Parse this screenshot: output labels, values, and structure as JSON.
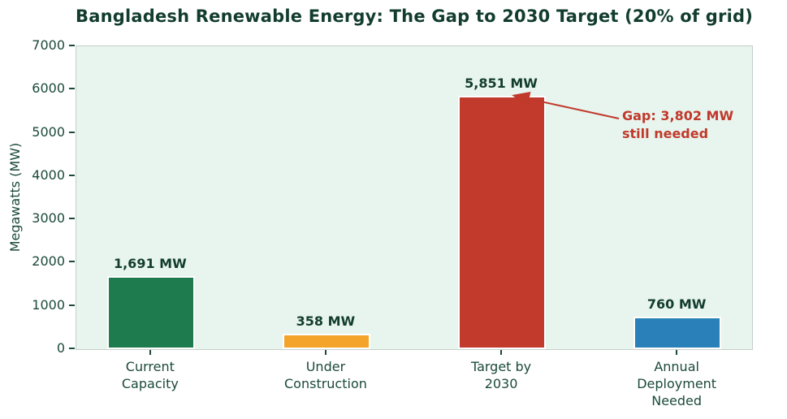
{
  "chart": {
    "title": "Bangladesh Renewable Energy: The Gap to 2030 Target (20% of grid)",
    "ylabel": "Megawatts (MW)"
  },
  "annotation": {
    "text": "Gap: 3,802 MW\nstill needed",
    "color": "#c0392b"
  },
  "colors": {
    "plot_background": "#e8f4ee",
    "spine": "#c7cfc9",
    "title_text": "#123d2e",
    "axis_text": "#1b4a39",
    "annotation_red": "#c0392b"
  },
  "chart_data": {
    "type": "bar",
    "title": "Bangladesh Renewable Energy: The Gap to 2030 Target (20% of grid)",
    "xlabel": "",
    "ylabel": "Megawatts (MW)",
    "categories": [
      "Current\nCapacity",
      "Under\nConstruction",
      "Target by\n2030",
      "Annual\nDeployment\nNeeded"
    ],
    "values": [
      1691,
      358,
      5851,
      760
    ],
    "value_labels": [
      "1,691 MW",
      "358 MW",
      "5,851 MW",
      "760 MW"
    ],
    "bar_colors": [
      "#1e7b4e",
      "#f5a42b",
      "#c13a2b",
      "#2a80b9"
    ],
    "bar_names": [
      "current-capacity",
      "under-construction",
      "target-by-2030",
      "annual-deployment-needed"
    ],
    "ylim": [
      0,
      7000
    ],
    "yticks": [
      0,
      1000,
      2000,
      3000,
      4000,
      5000,
      6000,
      7000
    ],
    "grid": false,
    "legend": "none",
    "annotations": [
      {
        "text": "Gap: 3,802 MW\nstill needed",
        "points_to_value": 5851,
        "points_to_category": "Target by\n2030"
      }
    ]
  }
}
